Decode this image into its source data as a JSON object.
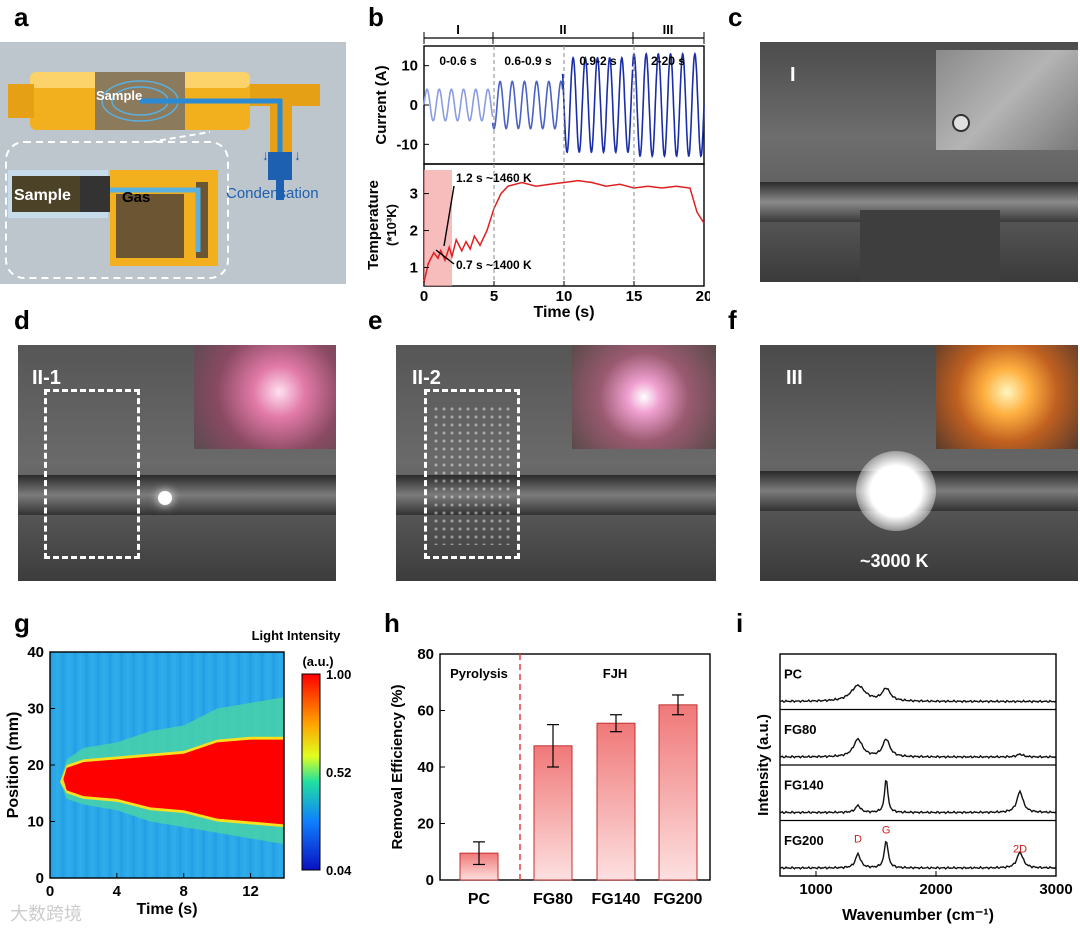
{
  "panel_labels": [
    "a",
    "b",
    "c",
    "d",
    "e",
    "f",
    "g",
    "h",
    "i"
  ],
  "panel_a": {
    "sample_top": "Sample",
    "sample_inset": "Sample",
    "gas": "Gas",
    "condensation": "Condensation"
  },
  "panel_b": {
    "stages": [
      "I",
      "II",
      "III"
    ],
    "stage_times": [
      "0-0.6 s",
      "0.6-0.9 s",
      "0.9-2 s",
      "2-20 s"
    ],
    "annot_1": "1.2 s ~1460 K",
    "annot_2": "0.7 s ~1400 K",
    "ylabel_top": "Current (A)",
    "ylabel_bottom": "Temperature",
    "ylabel_bottom2": "(*10³K)",
    "xlabel": "Time (s)"
  },
  "photos": {
    "c": "I",
    "d": "II-1",
    "e": "II-2",
    "f": "III",
    "f_temp": "~3000 K"
  },
  "chart_data": [
    {
      "type": "line",
      "panel": "b-top",
      "ylabel": "Current (A)",
      "xlim": [
        0,
        20
      ],
      "ylim": [
        -15,
        15
      ],
      "yticks": [
        -10,
        0,
        10
      ],
      "segments": [
        {
          "t_start": 0,
          "t_end": 4.9,
          "amplitude": 4,
          "color": "#8a9de0"
        },
        {
          "t_start": 4.9,
          "t_end": 9.9,
          "amplitude": 6,
          "color": "#4a62c8"
        },
        {
          "t_start": 9.9,
          "t_end": 14.9,
          "amplitude": 12,
          "color": "#1a2ea8"
        },
        {
          "t_start": 14.9,
          "t_end": 20,
          "amplitude": 13,
          "color": "#1a2ea8"
        }
      ]
    },
    {
      "type": "line",
      "panel": "b-bottom",
      "xlabel": "Time (s)",
      "ylabel": "Temperature (*10³K)",
      "xlim": [
        0,
        20
      ],
      "ylim": [
        0.5,
        3.8
      ],
      "xticks": [
        0,
        5,
        10,
        15,
        20
      ],
      "yticks": [
        1,
        2,
        3
      ],
      "x": [
        0,
        0.3,
        0.7,
        1.0,
        1.2,
        1.5,
        1.8,
        2.0,
        2.3,
        2.7,
        3.0,
        3.3,
        3.6,
        4.0,
        4.5,
        5.0,
        5.5,
        6.0,
        7.0,
        8.0,
        9.0,
        10.0,
        11.0,
        12.0,
        13.0,
        14.0,
        15.0,
        16.0,
        17.0,
        18.0,
        19.0,
        19.5,
        20.0
      ],
      "y": [
        0.6,
        1.1,
        1.4,
        1.25,
        1.46,
        1.2,
        1.55,
        1.3,
        1.75,
        1.45,
        1.7,
        1.5,
        1.85,
        1.6,
        2.0,
        2.6,
        3.0,
        3.2,
        3.3,
        3.2,
        3.25,
        3.3,
        3.35,
        3.3,
        3.2,
        3.25,
        3.15,
        3.2,
        3.15,
        3.2,
        3.15,
        2.5,
        2.2
      ]
    },
    {
      "type": "heatmap",
      "panel": "g",
      "xlabel": "Time (s)",
      "ylabel": "Position (mm)",
      "xlim": [
        0,
        14
      ],
      "ylim": [
        0,
        40
      ],
      "xticks": [
        0,
        4,
        8,
        12
      ],
      "yticks": [
        0,
        10,
        20,
        30,
        40
      ],
      "colorbar_title": "Light Intensity",
      "colorbar_unit": "(a.u.)",
      "colorbar_ticks": [
        "1.00",
        "0.52",
        "0.04"
      ]
    },
    {
      "type": "bar",
      "panel": "h",
      "categories": [
        "PC",
        "FG80",
        "FG140",
        "FG200"
      ],
      "values": [
        9.5,
        47.5,
        55.5,
        62
      ],
      "errors": [
        4,
        7.5,
        3,
        3.5
      ],
      "ylabel": "Removal Efficiency (%)",
      "ylim": [
        0,
        80
      ],
      "yticks": [
        0,
        20,
        40,
        60,
        80
      ],
      "group_labels": [
        "Pyrolysis",
        "FJH"
      ]
    },
    {
      "type": "line",
      "panel": "i",
      "xlabel": "Wavenumber (cm⁻¹)",
      "ylabel": "Intensity (a.u.)",
      "xlim": [
        700,
        3000
      ],
      "xticks": [
        1000,
        2000,
        3000
      ],
      "series": [
        {
          "name": "PC",
          "D": 0.45,
          "G": 0.35,
          "D_width": 70,
          "G_width": 40,
          "twoD": 0.0
        },
        {
          "name": "FG80",
          "D": 0.5,
          "G": 0.5,
          "D_width": 45,
          "G_width": 35,
          "twoD": 0.08
        },
        {
          "name": "FG140",
          "D": 0.2,
          "G": 1.0,
          "D_width": 25,
          "G_width": 15,
          "twoD": 0.6
        },
        {
          "name": "FG200",
          "D": 0.4,
          "G": 0.8,
          "D_width": 25,
          "G_width": 18,
          "twoD": 0.45
        }
      ],
      "peak_labels": [
        "D",
        "G",
        "2D"
      ]
    }
  ],
  "watermark": "大数跨境"
}
